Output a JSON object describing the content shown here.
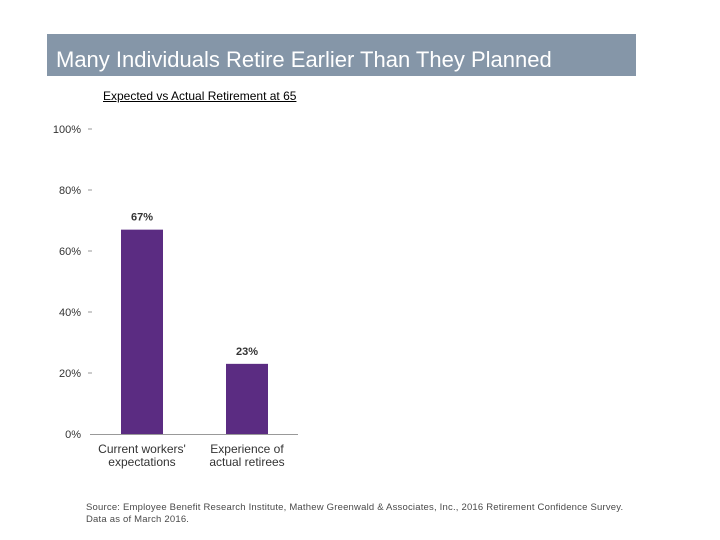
{
  "slide": {
    "title": "Many Individuals Retire Earlier Than They Planned",
    "subtitle": "Expected vs Actual Retirement at 65",
    "source_line1": "Source: Employee Benefit Research Institute, Mathew Greenwald & Associates, Inc., 2016 Retirement Confidence Survey.",
    "source_line2": "Data as of March 2016."
  },
  "colors": {
    "title_bar": "#8596a8",
    "bar": "#5b2c82",
    "axis": "#999999"
  },
  "chart_data": {
    "type": "bar",
    "title": "Expected vs Actual Retirement at 65",
    "xlabel": "",
    "ylabel": "",
    "ylim": [
      0,
      100
    ],
    "yticks": [
      "0%",
      "20%",
      "40%",
      "60%",
      "80%",
      "100%"
    ],
    "categories": [
      [
        "Current workers'",
        "expectations"
      ],
      [
        "Experience of",
        "actual retirees"
      ]
    ],
    "values": [
      67,
      23
    ],
    "data_labels": [
      "67%",
      "23%"
    ]
  }
}
